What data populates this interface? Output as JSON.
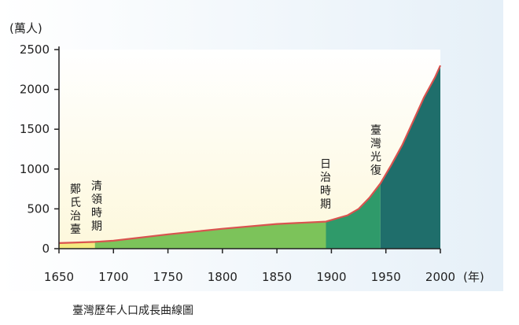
{
  "caption": "臺灣歷年人口成長曲線圖",
  "chart_data": {
    "type": "area",
    "title": "",
    "xlabel": "(年)",
    "ylabel": "(萬人)",
    "xlim": [
      1650,
      2000
    ],
    "ylim": [
      0,
      2500
    ],
    "x_ticks": [
      1650,
      1700,
      1750,
      1800,
      1850,
      1900,
      1950,
      2000
    ],
    "y_ticks": [
      0,
      500,
      1000,
      1500,
      2000,
      2500
    ],
    "grid": false,
    "legend": "none",
    "series": [
      {
        "x": [
          1650,
          1662,
          1683,
          1700,
          1750,
          1800,
          1850,
          1895,
          1905,
          1915,
          1925,
          1935,
          1945,
          1955,
          1965,
          1975,
          1985,
          1995,
          2000
        ],
        "y": [
          70,
          75,
          85,
          100,
          180,
          250,
          310,
          340,
          380,
          420,
          500,
          640,
          820,
          1050,
          1300,
          1600,
          1900,
          2150,
          2300
        ]
      }
    ],
    "periods": [
      {
        "label": "鄭氏治臺",
        "start": 1650,
        "end": 1683,
        "color": "#f4ea80"
      },
      {
        "label": "清領時期",
        "start": 1683,
        "end": 1895,
        "color": "#7cc35a"
      },
      {
        "label": "日治時期",
        "start": 1895,
        "end": 1945,
        "color": "#2f9a6a"
      },
      {
        "label": "臺灣光復",
        "start": 1945,
        "end": 2000,
        "color": "#1f6e6b"
      }
    ],
    "line_color": "#d9534f",
    "background_color": "#fdf8dc"
  }
}
